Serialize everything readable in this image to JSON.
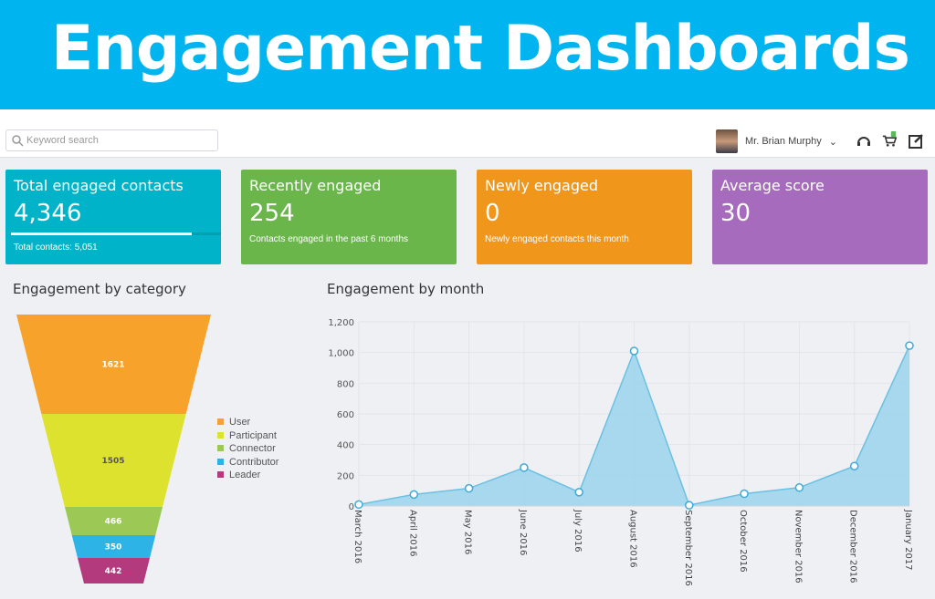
{
  "banner": {
    "title": "Engagement Dashboards"
  },
  "topbar": {
    "search_placeholder": "Keyword search",
    "user_name": "Mr. Brian Murphy",
    "cart_count": "0",
    "icons": [
      "search-icon",
      "headset-icon",
      "cart-icon",
      "edit-icon",
      "chevron-down-icon"
    ]
  },
  "cards": [
    {
      "title": "Total engaged contacts",
      "value": "4,346",
      "sub": "Total contacts: 5,051",
      "progress": 0.86,
      "color": "#00b3c8"
    },
    {
      "title": "Recently engaged",
      "value": "254",
      "sub": "Contacts engaged in the past 6 months",
      "color": "#6ab64a"
    },
    {
      "title": "Newly engaged",
      "value": "0",
      "sub": "Newly engaged contacts this month",
      "color": "#f0961a"
    },
    {
      "title": "Average score",
      "value": "30",
      "sub": "",
      "color": "#a66bbd"
    }
  ],
  "chart_data": [
    {
      "type": "funnel",
      "title": "Engagement by category",
      "legend_position": "right",
      "categories": [
        "User",
        "Participant",
        "Connector",
        "Contributor",
        "Leader"
      ],
      "values": [
        1621,
        1505,
        466,
        350,
        442
      ],
      "colors": [
        "#f7a22a",
        "#dde22f",
        "#9cc955",
        "#2eb3e6",
        "#b23a7d"
      ]
    },
    {
      "type": "area",
      "title": "Engagement by month",
      "grid": true,
      "ylim": [
        0,
        1200
      ],
      "yticks": [
        "0",
        "200",
        "400",
        "600",
        "800",
        "1,000",
        "1,200"
      ],
      "categories": [
        "March 2016",
        "April 2016",
        "May 2016",
        "June 2016",
        "July 2016",
        "August 2016",
        "September 2016",
        "October 2016",
        "November 2016",
        "December 2016",
        "January 2017"
      ],
      "values": [
        10,
        75,
        115,
        250,
        90,
        1010,
        5,
        80,
        120,
        260,
        1045
      ],
      "color": "#9fd5ec"
    }
  ]
}
